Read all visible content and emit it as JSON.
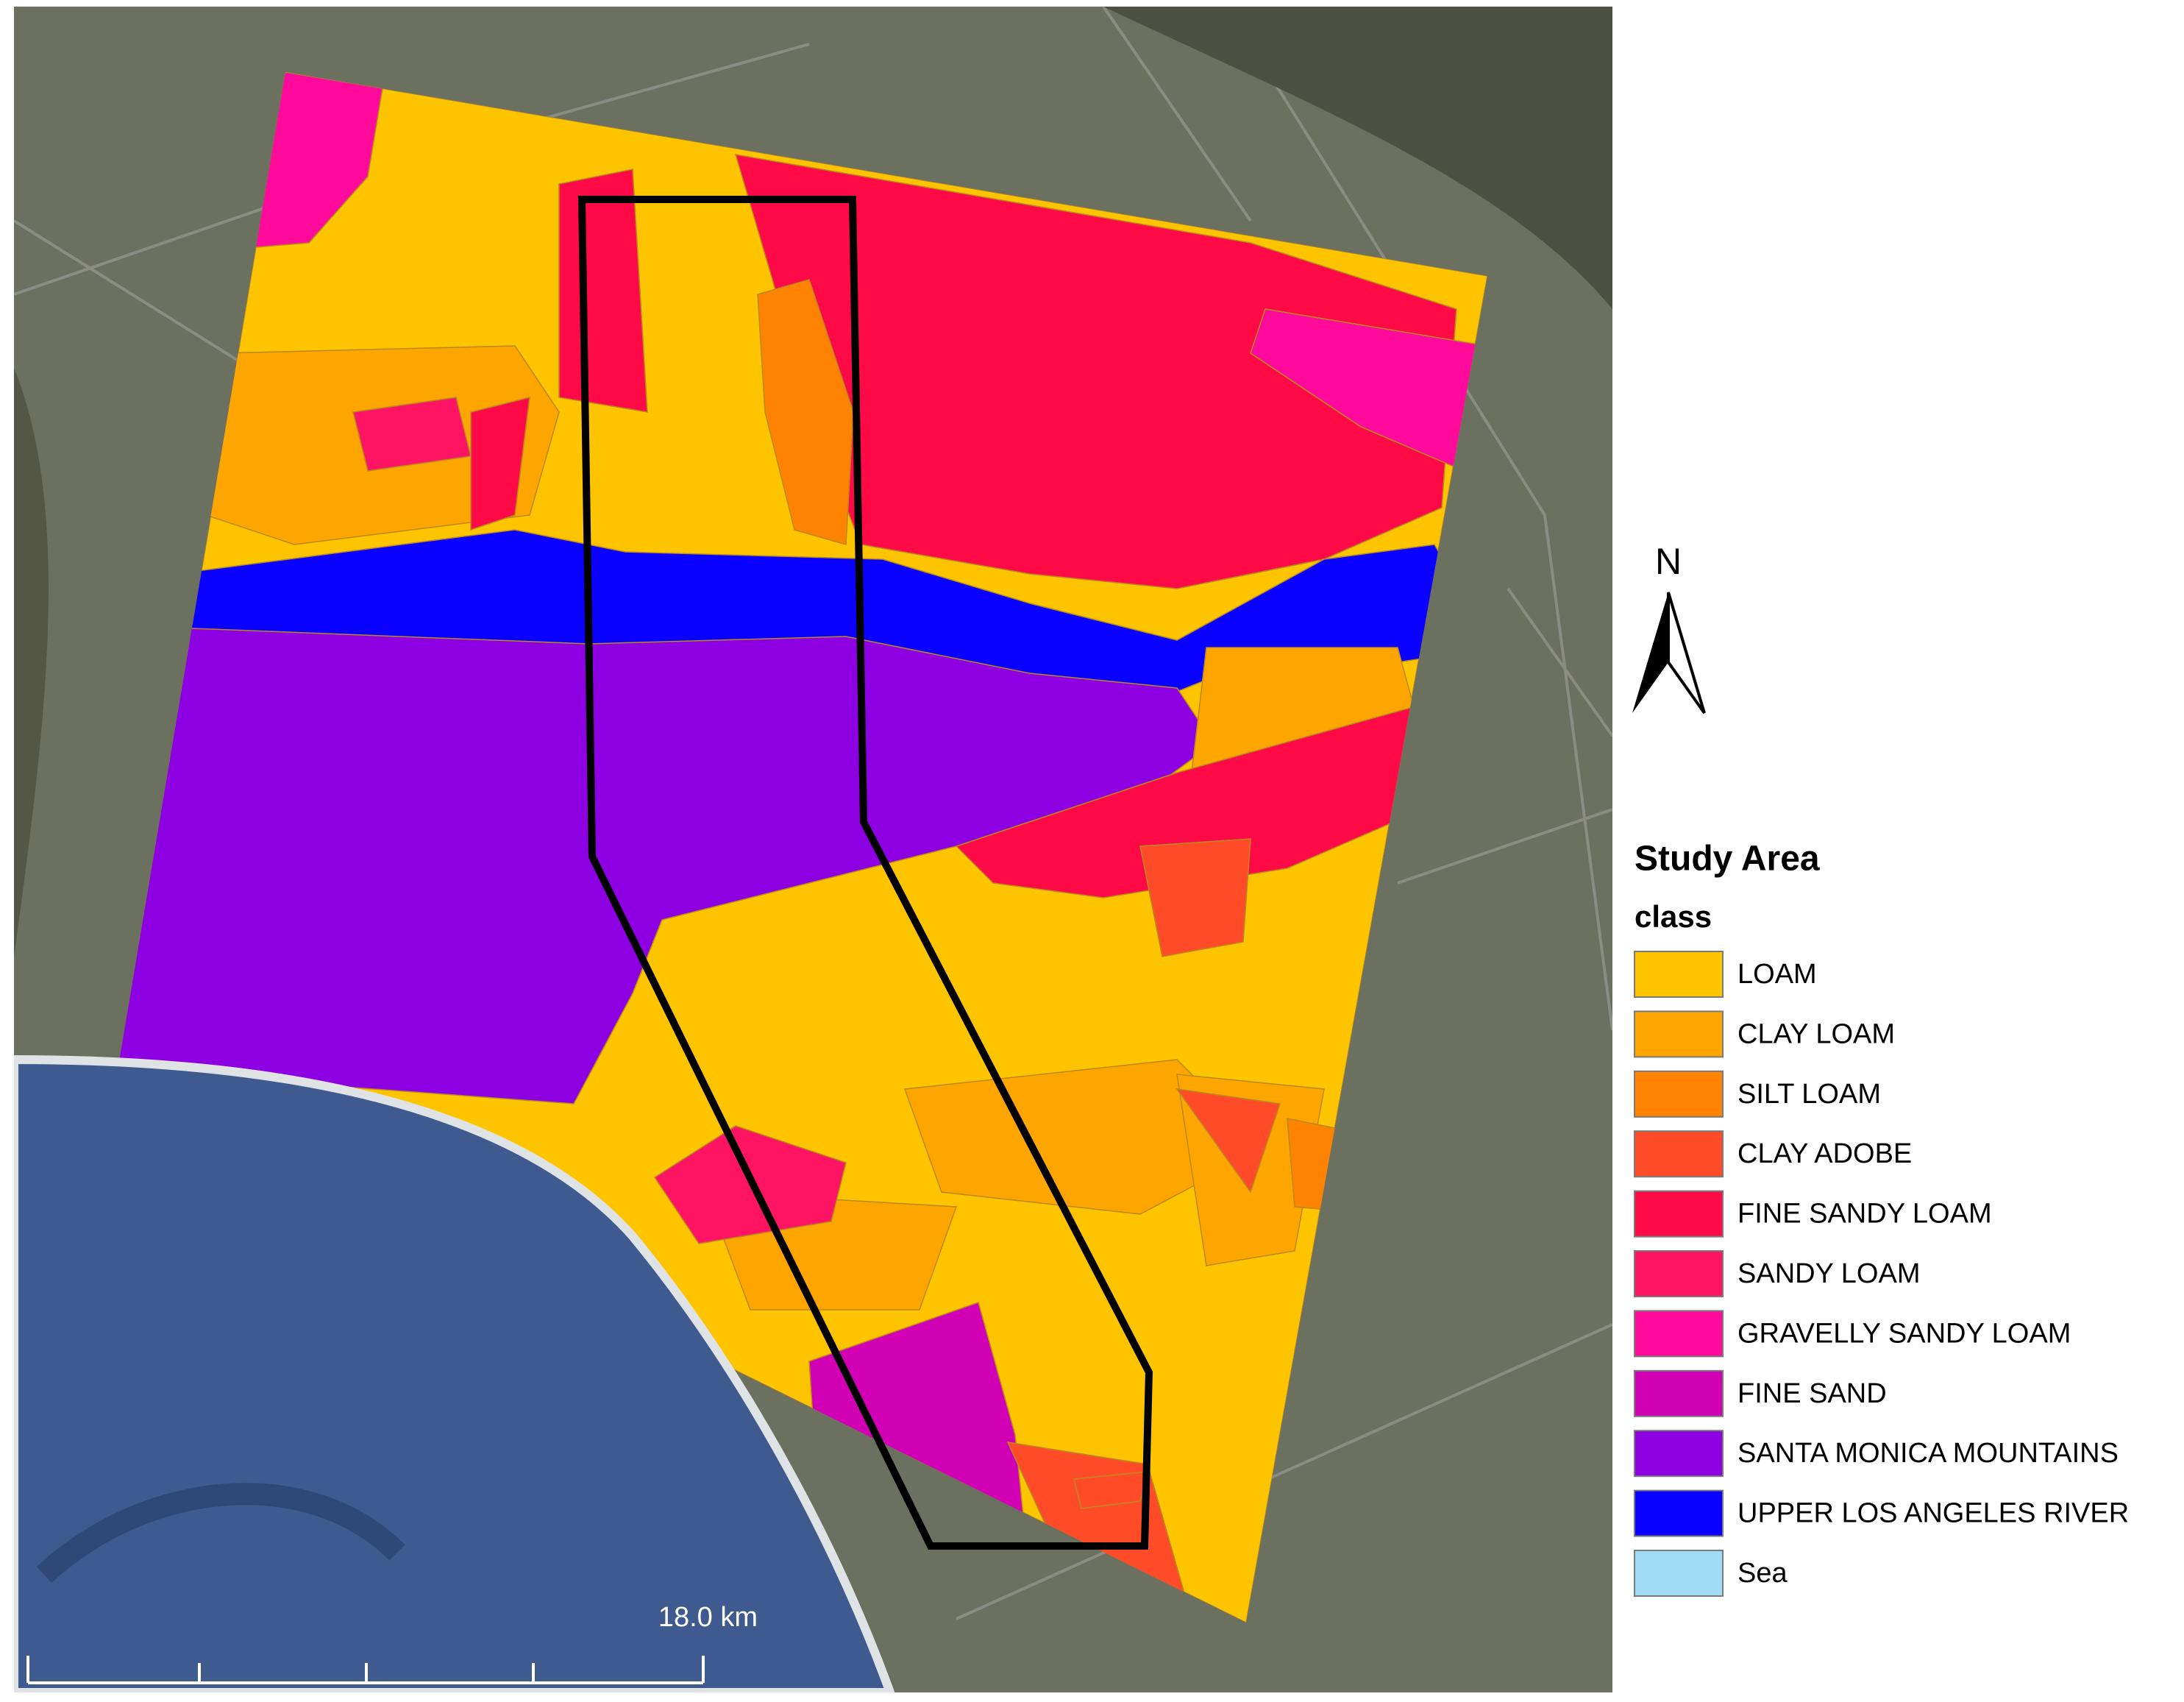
{
  "legend": {
    "title": "Study Area",
    "subtitle": "class",
    "items": [
      {
        "label": "LOAM",
        "color": "#ffc400"
      },
      {
        "label": "CLAY LOAM",
        "color": "#ffa500"
      },
      {
        "label": "SILT LOAM",
        "color": "#ff8200"
      },
      {
        "label": "CLAY ADOBE",
        "color": "#ff4b28"
      },
      {
        "label": "FINE SANDY LOAM",
        "color": "#ff0a46"
      },
      {
        "label": "SANDY LOAM",
        "color": "#ff1464"
      },
      {
        "label": "GRAVELLY SANDY LOAM",
        "color": "#ff0a9b"
      },
      {
        "label": "FINE SAND",
        "color": "#d200b4"
      },
      {
        "label": "SANTA MONICA MOUNTAINS",
        "color": "#8c00e1"
      },
      {
        "label": "UPPER LOS ANGELES RIVER",
        "color": "#0a00ff"
      },
      {
        "label": "Sea",
        "color": "#a0dcf5"
      }
    ]
  },
  "north_arrow": {
    "label": "N"
  },
  "scale_bar": {
    "label": "18.0 km"
  }
}
